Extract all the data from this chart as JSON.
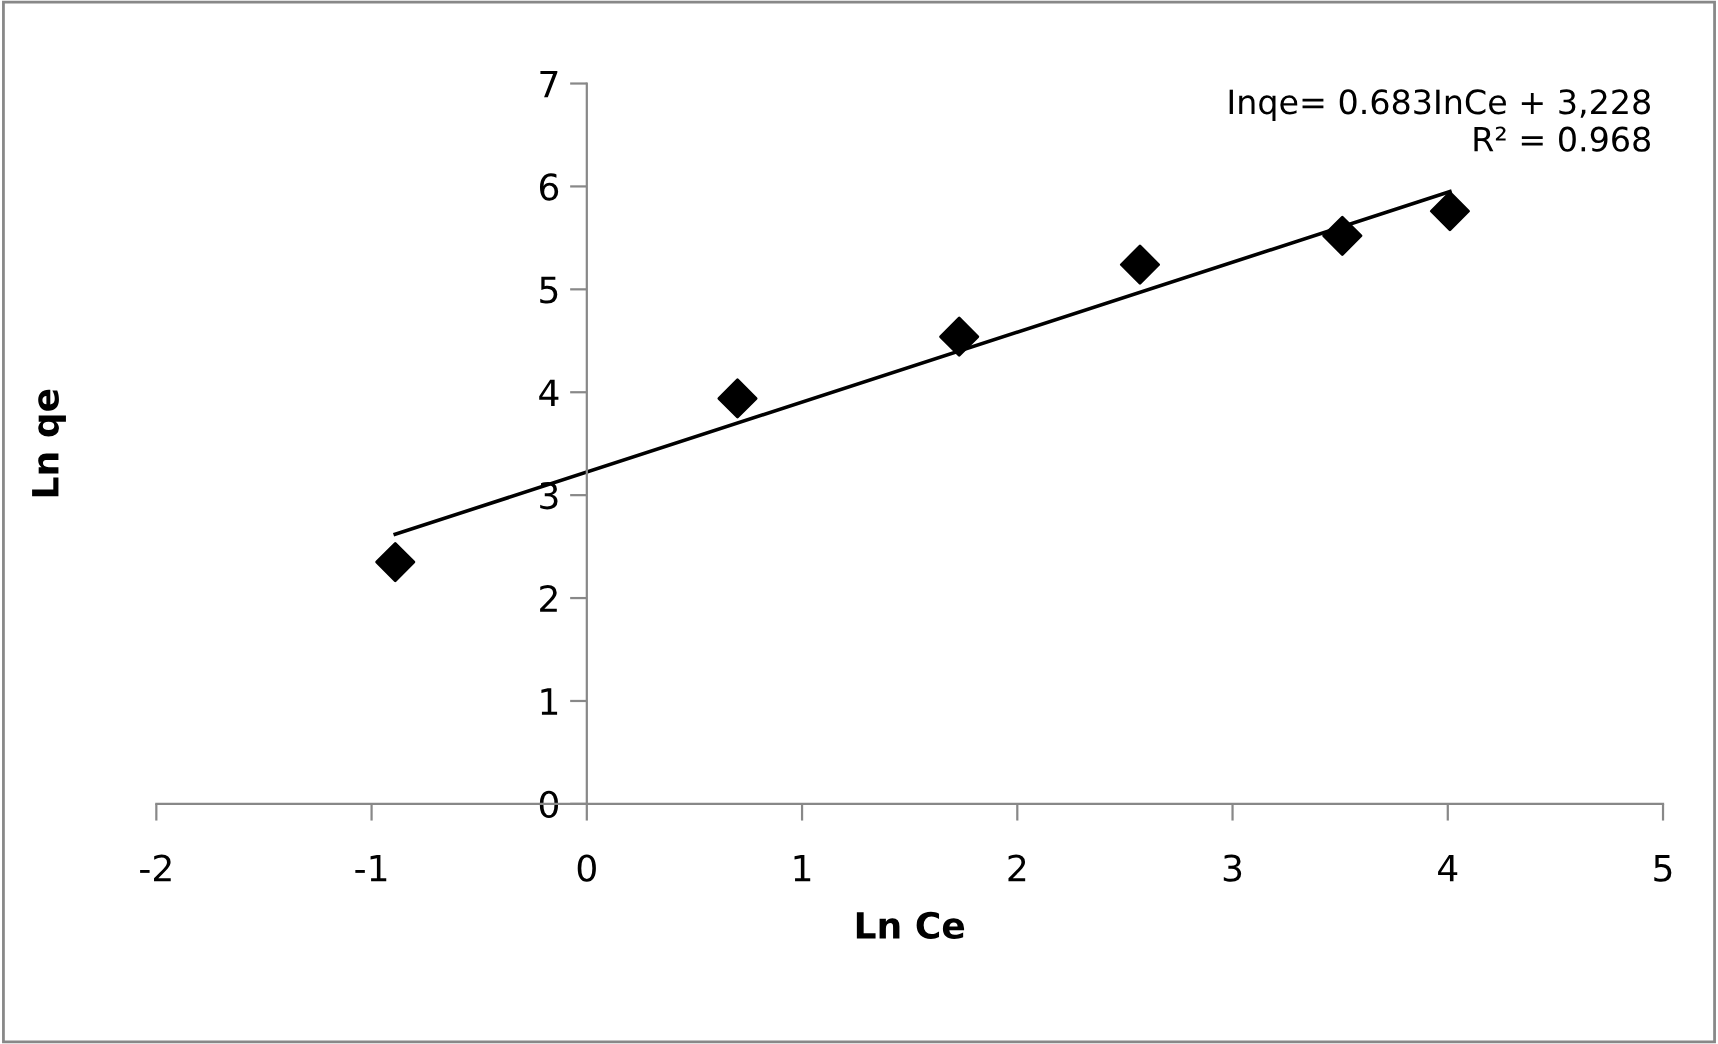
{
  "chart_data": {
    "type": "scatter",
    "xlabel": "Ln Ce",
    "ylabel": "Ln qe",
    "xlim": [
      -2,
      5
    ],
    "xticks": [
      -2,
      -1,
      0,
      1,
      2,
      3,
      4,
      5
    ],
    "ylim": [
      0,
      7
    ],
    "yticks": [
      0,
      1,
      2,
      3,
      4,
      5,
      6,
      7
    ],
    "grid": false,
    "legend": false,
    "marker": "diamond",
    "series": [
      {
        "color": "#000000",
        "x": [
          -0.89,
          0.7,
          1.73,
          2.57,
          3.51,
          4.01
        ],
        "values": [
          2.35,
          3.94,
          4.54,
          5.24,
          5.52,
          5.76
        ]
      },
      {
        "type": "line",
        "color": "#000000",
        "line_style": "solid",
        "marker": "none",
        "x": [
          -0.89,
          4.01
        ],
        "values": [
          2.62,
          5.95
        ]
      }
    ],
    "annotations": [
      "Inqe= 0.683InCe + 3,228\nR² = 0.968"
    ]
  }
}
